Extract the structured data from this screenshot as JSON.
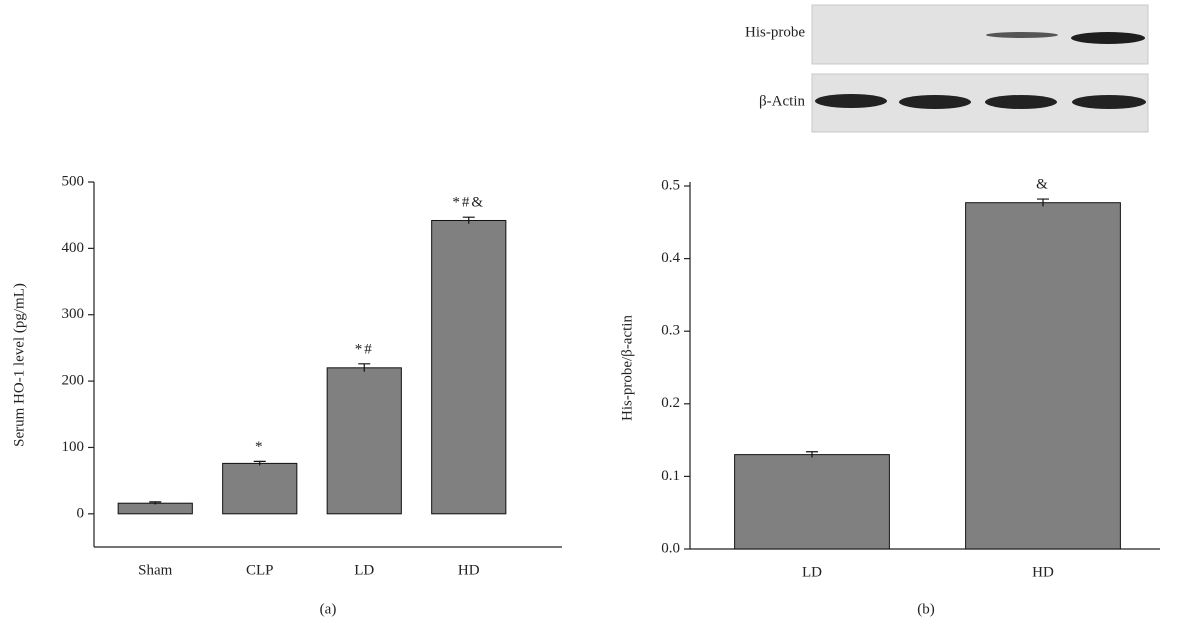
{
  "chart_data": [
    {
      "type": "bar",
      "ylabel": "Serum HO-1 level (pg/mL)",
      "panel_label": "(a)",
      "categories": [
        "Sham",
        "CLP",
        "LD",
        "HD"
      ],
      "values": [
        16,
        76,
        220,
        442
      ],
      "errors": [
        2,
        3,
        6,
        5
      ],
      "annotations": [
        null,
        "*",
        "*#",
        "*#&"
      ],
      "color": "#808080",
      "ylim": [
        -50,
        500
      ],
      "yticks": [
        0,
        100,
        200,
        300,
        400,
        500
      ]
    },
    {
      "type": "bar",
      "ylabel": "His-probe/β-actin",
      "panel_label": "(b)",
      "categories": [
        "LD",
        "HD"
      ],
      "values": [
        0.13,
        0.477
      ],
      "errors": [
        0.004,
        0.005
      ],
      "annotations": [
        null,
        "&"
      ],
      "color": "#808080",
      "ylim": [
        0,
        0.5
      ],
      "yticks": [
        {
          "value": 0,
          "label": "0.0"
        },
        0.1,
        0.2,
        0.3,
        0.4,
        0.5
      ]
    }
  ],
  "blot": {
    "rows": [
      "His-probe",
      "β-Actin"
    ]
  }
}
